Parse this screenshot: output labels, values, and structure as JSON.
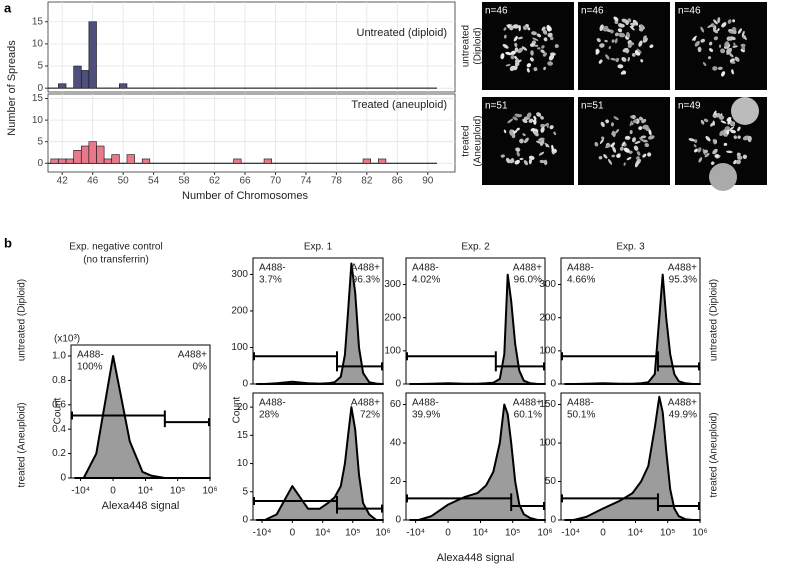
{
  "panels": [
    "a",
    "b"
  ],
  "rows": [
    "untreated (Diploid)",
    "treated (Aneuploid)"
  ],
  "micrographs": {
    "rows": [
      [
        "untreated",
        "(Diploid)"
      ],
      [
        "treated",
        "(Aneuploid)"
      ]
    ],
    "labels": [
      [
        "n=46",
        "n=46",
        "n=46"
      ],
      [
        "n=51",
        "n=51",
        "n=49"
      ]
    ]
  },
  "chart_data": [
    {
      "type": "histogram",
      "title": "Untreated (diploid)",
      "y_label": "Number of Spreads",
      "color": "#4f4f7d",
      "x": [
        42,
        44,
        45,
        46,
        50
      ],
      "values": [
        1,
        5,
        4,
        15,
        1
      ],
      "xlim": [
        40,
        92
      ],
      "xticks": [
        42,
        46,
        50,
        54,
        58,
        62,
        66,
        70,
        74,
        78,
        82,
        86,
        90
      ],
      "ylim": [
        -0.75,
        16.75
      ],
      "yticks": [
        0,
        5,
        10,
        15
      ],
      "grid": true
    },
    {
      "type": "histogram",
      "title": "Treated (aneuploid)",
      "x_label": "Number of Chromosomes",
      "color": "#e8798a",
      "x": [
        41,
        42,
        43,
        44,
        45,
        46,
        47,
        48,
        49,
        51,
        53,
        65,
        69,
        82,
        84
      ],
      "values": [
        1,
        1,
        1,
        3,
        4,
        5,
        4,
        1,
        2,
        2,
        1,
        1,
        1,
        1,
        1
      ],
      "xlim": [
        40,
        92
      ],
      "xticks": [
        42,
        46,
        50,
        54,
        58,
        62,
        66,
        70,
        74,
        78,
        82,
        86,
        90
      ],
      "ylim": [
        -0.75,
        16.75
      ],
      "yticks": [
        0,
        5,
        10,
        15
      ],
      "grid": true
    },
    {
      "type": "area",
      "title": "Exp. negative control",
      "subtitle": "(no transferrin)",
      "x_label": "Alexa448 signal",
      "y_label": "Count",
      "y_unit": "(x10³)",
      "color": "#9c9c9c",
      "x": [
        -15000,
        -8000,
        -3000,
        0,
        3000,
        8000,
        15000,
        25000,
        40000,
        55000,
        70000,
        90000,
        120000,
        160000,
        220000,
        350000,
        600000,
        1000000
      ],
      "values": [
        0,
        0,
        0.2,
        1.0,
        0.3,
        0.05,
        0.02,
        0.01,
        0,
        0,
        0,
        0,
        0,
        0,
        0,
        0,
        0,
        0
      ],
      "xlim": [
        -20000,
        1000000
      ],
      "xticks": [
        {
          "value": -10000,
          "label": "-10⁴"
        },
        0,
        {
          "value": 10000,
          "label": "10⁴"
        },
        {
          "value": 100000,
          "label": "10⁵"
        },
        {
          "value": 1000000,
          "label": "10⁶"
        }
      ],
      "ylim": [
        0,
        1.09
      ],
      "yticks": [
        0,
        0.2,
        0.4,
        0.6,
        0.8,
        {
          "value": 1,
          "label": "1.0"
        }
      ],
      "gate": 40000,
      "annotations": [
        "A488-",
        "100%",
        "A488+",
        "0%"
      ]
    },
    {
      "type": "area",
      "title": "Exp. 1",
      "color": "#9c9c9c",
      "x": [
        -15000,
        -8000,
        -3000,
        0,
        3000,
        8000,
        15000,
        25000,
        40000,
        55000,
        70000,
        90000,
        120000,
        160000,
        220000,
        350000,
        600000,
        1000000
      ],
      "values": [
        0,
        0,
        2,
        6,
        2,
        1,
        2,
        5,
        20,
        80,
        200,
        330,
        250,
        100,
        30,
        5,
        1,
        0
      ],
      "xlim": [
        -20000,
        1000000
      ],
      "ylim": [
        0,
        345
      ],
      "yticks": [
        0,
        100,
        200,
        300
      ],
      "gate": 30000,
      "annotations": [
        "A488-",
        "3.7%",
        "A488+",
        "96.3%"
      ]
    },
    {
      "type": "area",
      "title": "Exp. 2",
      "color": "#9c9c9c",
      "x": [
        -15000,
        -8000,
        -3000,
        0,
        3000,
        8000,
        15000,
        25000,
        40000,
        55000,
        70000,
        90000,
        120000,
        160000,
        220000,
        350000,
        600000,
        1000000
      ],
      "values": [
        0,
        0,
        1,
        2,
        1,
        1,
        2,
        4,
        15,
        90,
        330,
        250,
        120,
        40,
        10,
        2,
        0,
        0
      ],
      "xlim": [
        -20000,
        1000000
      ],
      "ylim": [
        0,
        380
      ],
      "yticks": [
        0,
        100,
        200,
        300
      ],
      "gate": 30000,
      "annotations": [
        "A488-",
        "4.02%",
        "A488+",
        "96.0%"
      ]
    },
    {
      "type": "area",
      "title": "Exp. 3",
      "color": "#9c9c9c",
      "x": [
        -15000,
        -8000,
        -3000,
        0,
        3000,
        8000,
        15000,
        25000,
        40000,
        55000,
        70000,
        90000,
        120000,
        160000,
        220000,
        350000,
        600000,
        1000000
      ],
      "values": [
        0,
        0,
        1,
        2,
        1,
        1,
        2,
        5,
        30,
        200,
        330,
        200,
        90,
        30,
        8,
        2,
        0,
        0
      ],
      "xlim": [
        -20000,
        1000000
      ],
      "ylim": [
        0,
        380
      ],
      "yticks": [
        0,
        100,
        200,
        300
      ],
      "gate": 50000,
      "annotations": [
        "A488-",
        "4.66%",
        "A488+",
        "95.3%"
      ]
    },
    {
      "type": "area",
      "y_label": "Count",
      "color": "#9c9c9c",
      "x": [
        -15000,
        -8000,
        -3000,
        0,
        3000,
        8000,
        15000,
        25000,
        40000,
        55000,
        70000,
        90000,
        120000,
        160000,
        220000,
        350000,
        600000,
        1000000
      ],
      "values": [
        0,
        0,
        1,
        6,
        2,
        2,
        3,
        4,
        6,
        10,
        15,
        20,
        16,
        8,
        3,
        1,
        0,
        0
      ],
      "xlim": [
        -20000,
        1000000
      ],
      "xticks": [
        {
          "value": -10000,
          "label": "-10⁴"
        },
        0,
        {
          "value": 10000,
          "label": "10⁴"
        },
        {
          "value": 100000,
          "label": "10⁵"
        },
        {
          "value": 1000000,
          "label": "10⁶"
        }
      ],
      "ylim": [
        0,
        22.5
      ],
      "yticks": [
        0,
        5,
        10,
        15,
        20
      ],
      "gate": 30000,
      "annotations": [
        "A488-",
        "28%",
        "A488+",
        "72%"
      ]
    },
    {
      "type": "area",
      "x_label": "Alexa448 signal",
      "color": "#9c9c9c",
      "x": [
        -15000,
        -8000,
        -3000,
        0,
        3000,
        8000,
        15000,
        25000,
        40000,
        55000,
        70000,
        90000,
        120000,
        160000,
        220000,
        350000,
        600000,
        1000000
      ],
      "values": [
        0,
        0,
        2,
        8,
        12,
        14,
        18,
        25,
        40,
        60,
        55,
        40,
        20,
        8,
        3,
        1,
        0,
        0
      ],
      "xlim": [
        -20000,
        1000000
      ],
      "xticks": [
        {
          "value": -10000,
          "label": "-10⁴"
        },
        0,
        {
          "value": 10000,
          "label": "10⁴"
        },
        {
          "value": 100000,
          "label": "10⁵"
        },
        {
          "value": 1000000,
          "label": "10⁶"
        }
      ],
      "ylim": [
        0,
        66
      ],
      "yticks": [
        0,
        20,
        40,
        60
      ],
      "gate": 90000,
      "annotations": [
        "A488-",
        "39.9%",
        "A488+",
        "60.1%"
      ]
    },
    {
      "type": "area",
      "color": "#9c9c9c",
      "x": [
        -15000,
        -8000,
        -3000,
        0,
        3000,
        8000,
        15000,
        25000,
        40000,
        55000,
        70000,
        90000,
        120000,
        160000,
        220000,
        350000,
        600000,
        1000000
      ],
      "values": [
        0,
        0,
        4,
        15,
        25,
        35,
        50,
        70,
        120,
        160,
        140,
        90,
        40,
        15,
        5,
        1,
        0,
        0
      ],
      "xlim": [
        -20000,
        1000000
      ],
      "xticks": [
        {
          "value": -10000,
          "label": "-10⁴"
        },
        0,
        {
          "value": 10000,
          "label": "10⁴"
        },
        {
          "value": 100000,
          "label": "10⁵"
        },
        {
          "value": 1000000,
          "label": "10⁶"
        }
      ],
      "ylim": [
        0,
        165
      ],
      "yticks": [
        0,
        50,
        100,
        150
      ],
      "gate": 50000,
      "annotations": [
        "A488-",
        "50.1%",
        "A488+",
        "49.9%"
      ]
    }
  ]
}
